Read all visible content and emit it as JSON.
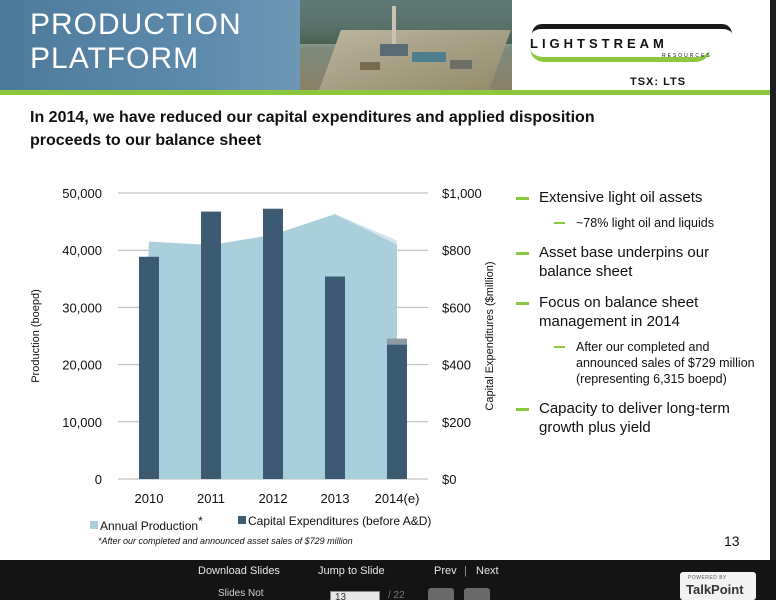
{
  "header": {
    "title_line_1": "PRODUCTION",
    "title_line_2": "PLATFORM",
    "logo_text": "LIGHTSTREAM",
    "logo_sub": "RESOURCES",
    "ticker": "TSX: LTS"
  },
  "subtitle": "In 2014, we have reduced our capital expenditures and applied disposition proceeds to our balance sheet",
  "chart_data": {
    "type": "bar",
    "categories": [
      "2010",
      "2011",
      "2012",
      "2013",
      "2014(e)"
    ],
    "series": [
      {
        "name": "Annual Production",
        "type": "area",
        "axis": "left",
        "values": [
          41500,
          40900,
          42700,
          46300,
          41000
        ],
        "color": "#a9cfdc"
      },
      {
        "name": "Capital Expenditures (before A&D)",
        "type": "bar",
        "axis": "right",
        "values": [
          777,
          935,
          945,
          708,
          470
        ],
        "color": "#3d5a73"
      }
    ],
    "after_disposition_last": 41700,
    "left_axis": {
      "label": "Production (boepd)",
      "ylim": [
        0,
        50000
      ],
      "ticks": [
        "0",
        "10,000",
        "20,000",
        "30,000",
        "40,000",
        "50,000"
      ]
    },
    "right_axis": {
      "label": "Capital Expenditures ($million)",
      "ylim": [
        0,
        1000
      ],
      "ticks": [
        "$0",
        "$200",
        "$400",
        "$600",
        "$800",
        "$1,000"
      ]
    },
    "grid": true,
    "legend": "bottom"
  },
  "legend": {
    "production": "Annual Production",
    "production_mark": "*",
    "capex": "Capital Expenditures (before A&D)"
  },
  "footnote": "*After our completed and announced asset sales of $729 million",
  "bullets": [
    {
      "text": "Extensive light oil assets",
      "sub": "~78% light oil and liquids"
    },
    {
      "text": "Asset base underpins our balance sheet",
      "sub": ""
    },
    {
      "text": "Focus on balance sheet management in 2014",
      "sub": "After our completed and announced sales of $729 million (representing 6,315 boepd)"
    },
    {
      "text": "Capacity to deliver long-term growth plus yield",
      "sub": ""
    }
  ],
  "slide_number": "13",
  "colors": {
    "accent": "#8dc63f",
    "header_blue": "#5f8bac",
    "bar": "#3d5a73",
    "area": "#a9cfdc"
  },
  "player": {
    "download": "Download Slides",
    "jump": "Jump to Slide",
    "prev": "Prev",
    "separator": "|",
    "next": "Next",
    "slides_not": "Slides Not",
    "current_slide": "13",
    "total": "/ 22",
    "powered_by": "POWERED BY",
    "brand": "TalkPoint"
  }
}
